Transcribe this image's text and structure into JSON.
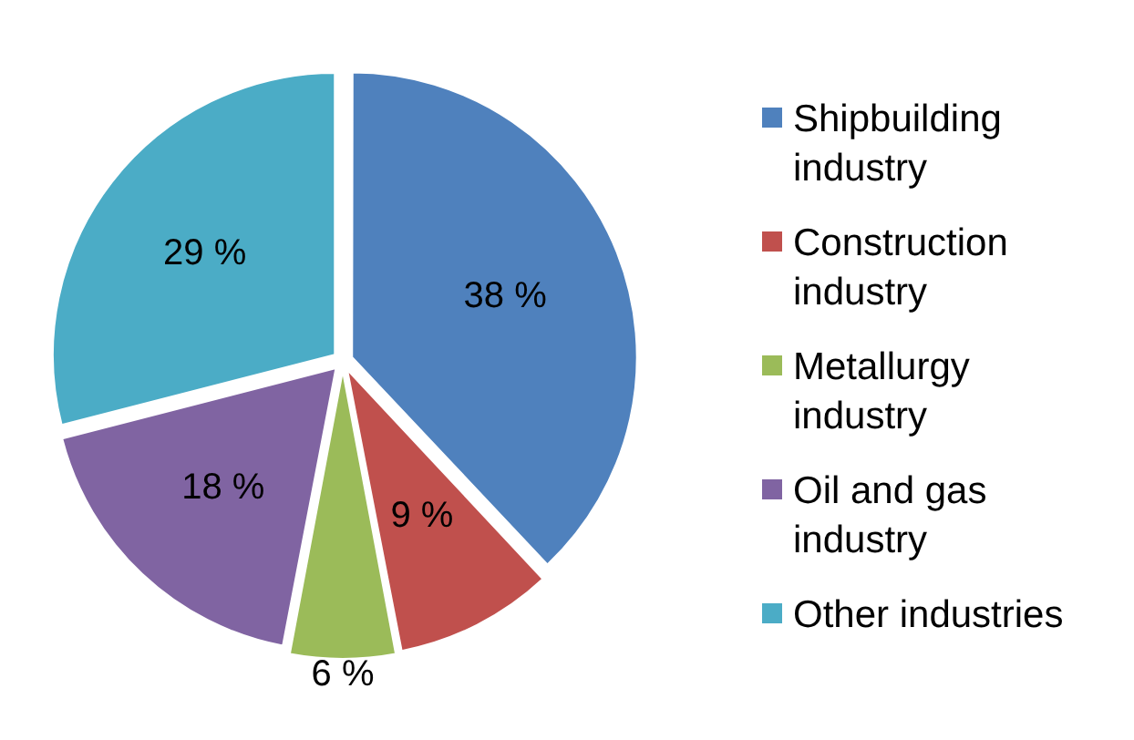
{
  "chart_data": {
    "type": "pie",
    "categories": [
      "Shipbuilding industry",
      "Construction industry",
      "Metallurgy industry",
      "Oil and gas industry",
      "Other industries"
    ],
    "values": [
      38,
      9,
      6,
      18,
      29
    ],
    "colors": [
      "#4f81bd",
      "#c0504d",
      "#9bbb59",
      "#8064a2",
      "#4bacc6"
    ],
    "value_labels": [
      "38 %",
      "9 %",
      "6 %",
      "18 %",
      "29 %"
    ],
    "legend": "right"
  }
}
